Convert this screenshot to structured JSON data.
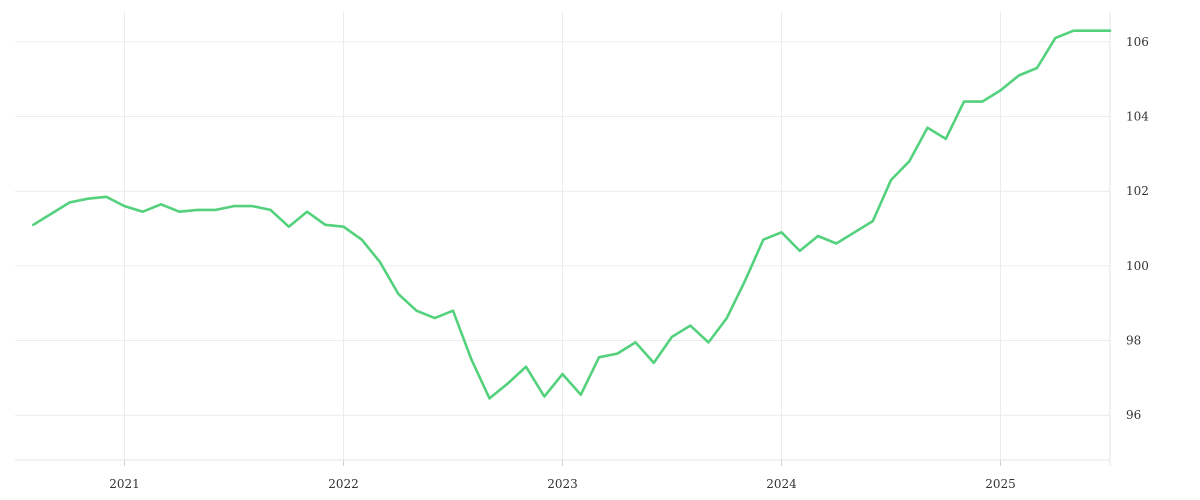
{
  "chart_data": {
    "type": "line",
    "title": "",
    "xlabel": "",
    "ylabel": "",
    "x_ticks": [
      "2021",
      "2022",
      "2023",
      "2024",
      "2025"
    ],
    "x_tick_values": [
      "2021-01",
      "2022-01",
      "2023-01",
      "2024-01",
      "2025-01"
    ],
    "y_ticks": [
      96,
      98,
      100,
      102,
      104,
      106
    ],
    "ylim": [
      94.8,
      106.8
    ],
    "xlim": [
      "2020-07",
      "2025-07"
    ],
    "y_axis_side": "right",
    "grid": true,
    "legend": false,
    "colors": {
      "line": "#53d17c",
      "grid": "#ececec",
      "text": "#333333"
    },
    "series": [
      {
        "x": [
          "2020-08",
          "2020-09",
          "2020-10",
          "2020-11",
          "2020-12",
          "2021-01",
          "2021-02",
          "2021-03",
          "2021-04",
          "2021-05",
          "2021-06",
          "2021-07",
          "2021-08",
          "2021-09",
          "2021-10",
          "2021-11",
          "2021-12",
          "2022-01",
          "2022-02",
          "2022-03",
          "2022-04",
          "2022-05",
          "2022-06",
          "2022-07",
          "2022-08",
          "2022-09",
          "2022-10",
          "2022-11",
          "2022-12",
          "2023-01",
          "2023-02",
          "2023-03",
          "2023-04",
          "2023-05",
          "2023-06",
          "2023-07",
          "2023-08",
          "2023-09",
          "2023-10",
          "2023-11",
          "2023-12",
          "2024-01",
          "2024-02",
          "2024-03",
          "2024-04",
          "2024-05",
          "2024-06",
          "2024-07",
          "2024-08",
          "2024-09",
          "2024-10",
          "2024-11",
          "2024-12",
          "2025-01",
          "2025-02",
          "2025-03",
          "2025-04",
          "2025-05",
          "2025-06",
          "2025-07"
        ],
        "values": [
          101.1,
          101.4,
          101.7,
          101.8,
          101.85,
          101.6,
          101.45,
          101.65,
          101.45,
          101.5,
          101.5,
          101.6,
          101.6,
          101.5,
          101.05,
          101.45,
          101.1,
          101.05,
          100.7,
          100.1,
          99.25,
          98.8,
          98.6,
          98.8,
          97.5,
          96.45,
          96.85,
          97.3,
          96.5,
          97.1,
          96.55,
          97.55,
          97.65,
          97.95,
          97.4,
          98.1,
          98.4,
          97.95,
          98.6,
          99.6,
          100.7,
          100.9,
          100.4,
          100.8,
          100.6,
          100.9,
          101.2,
          102.3,
          102.8,
          103.7,
          103.4,
          104.4,
          104.4,
          104.7,
          105.1,
          105.3,
          106.1,
          106.3,
          106.3,
          106.3
        ]
      }
    ]
  }
}
